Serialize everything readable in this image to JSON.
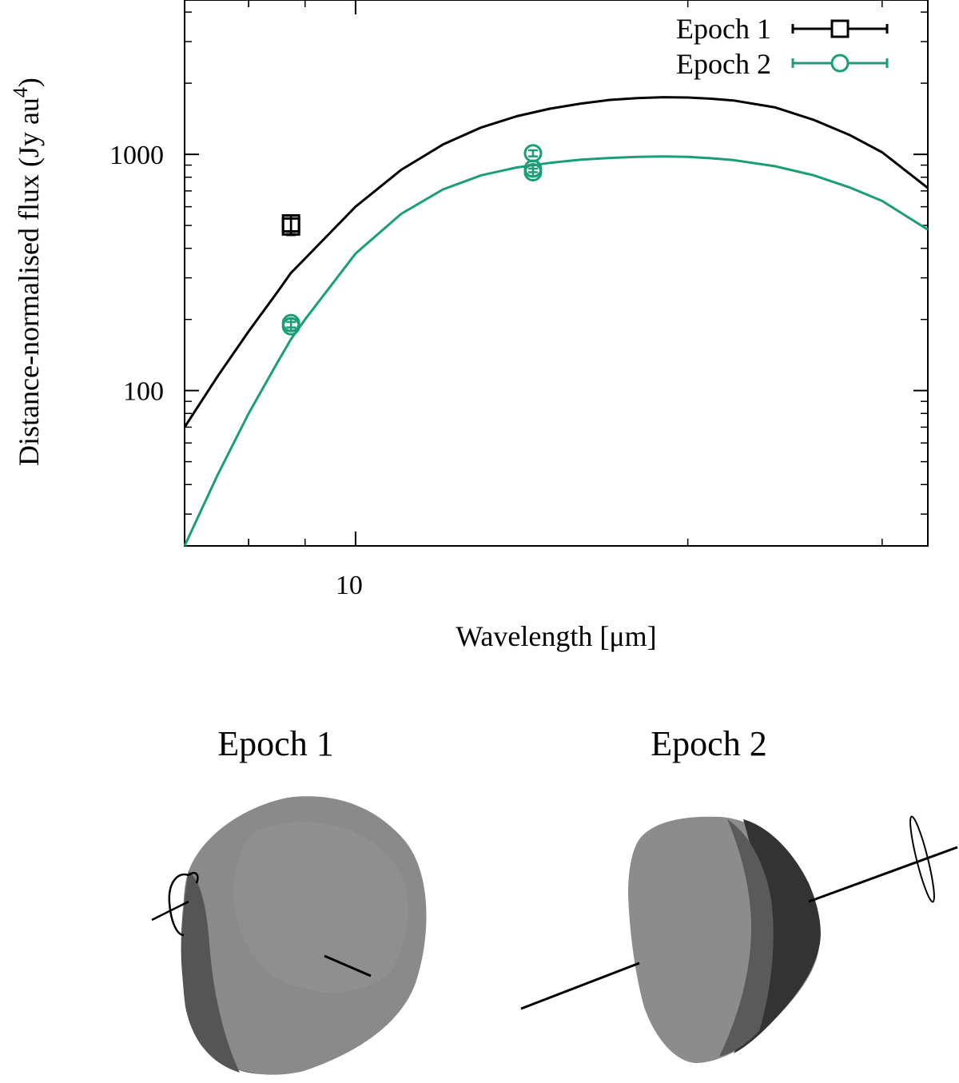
{
  "chart_data": {
    "type": "line",
    "scale": {
      "x": "log",
      "y": "log"
    },
    "xlim": [
      7.0,
      33.0
    ],
    "ylim": [
      22,
      4500
    ],
    "xlabel": "Wavelength [μm]",
    "ylabel": "Distance-normalised flux (Jy au",
    "ylabel_superscript": "4",
    "ylabel_close": ")",
    "x_ticks": [
      {
        "value": 10,
        "label": "10"
      }
    ],
    "y_ticks": [
      {
        "value": 100,
        "label": "100"
      },
      {
        "value": 1000,
        "label": "1000"
      }
    ],
    "grid": false,
    "legend_position": "top-right",
    "series": [
      {
        "name": "Epoch 1",
        "color": "#000000",
        "marker": "square",
        "model_curve": {
          "x": [
            7.0,
            7.5,
            8.0,
            8.5,
            8.74,
            9.0,
            10.0,
            11.0,
            12.0,
            13.0,
            14.0,
            15.0,
            16.0,
            17.0,
            18.0,
            19.0,
            20.0,
            21.0,
            22.0,
            24.0,
            26.0,
            28.0,
            30.0,
            33.0
          ],
          "y": [
            70,
            115,
            178,
            262,
            315,
            362,
            600,
            860,
            1100,
            1300,
            1450,
            1560,
            1640,
            1700,
            1730,
            1745,
            1740,
            1720,
            1690,
            1580,
            1400,
            1210,
            1020,
            720
          ]
        },
        "points": [
          {
            "x": 8.74,
            "y": 510,
            "err": 40
          },
          {
            "x": 8.74,
            "y": 495,
            "err": 40
          }
        ]
      },
      {
        "name": "Epoch 2",
        "color": "#1a9e77",
        "marker": "circle",
        "model_curve": {
          "x": [
            7.0,
            7.5,
            8.0,
            8.5,
            8.74,
            9.0,
            10.0,
            11.0,
            12.0,
            13.0,
            14.0,
            15.0,
            16.0,
            17.0,
            18.0,
            19.0,
            20.0,
            21.0,
            22.0,
            24.0,
            26.0,
            28.0,
            30.0,
            33.0
          ],
          "y": [
            22,
            44,
            80,
            132,
            165,
            200,
            380,
            560,
            710,
            815,
            880,
            920,
            950,
            965,
            975,
            980,
            975,
            962,
            945,
            890,
            815,
            725,
            635,
            480
          ]
        },
        "points": [
          {
            "x": 8.74,
            "y": 193,
            "err": 8
          },
          {
            "x": 8.74,
            "y": 187,
            "err": 8
          },
          {
            "x": 14.48,
            "y": 1010,
            "err": 30
          },
          {
            "x": 14.48,
            "y": 870,
            "err": 30
          },
          {
            "x": 14.48,
            "y": 840,
            "err": 30
          }
        ]
      }
    ]
  },
  "panels": {
    "epoch1_title": "Epoch 1",
    "epoch2_title": "Epoch 2"
  },
  "colors": {
    "shape_light": "#8c8c8c",
    "shape_mid": "#666666",
    "shape_dark": "#333333"
  }
}
